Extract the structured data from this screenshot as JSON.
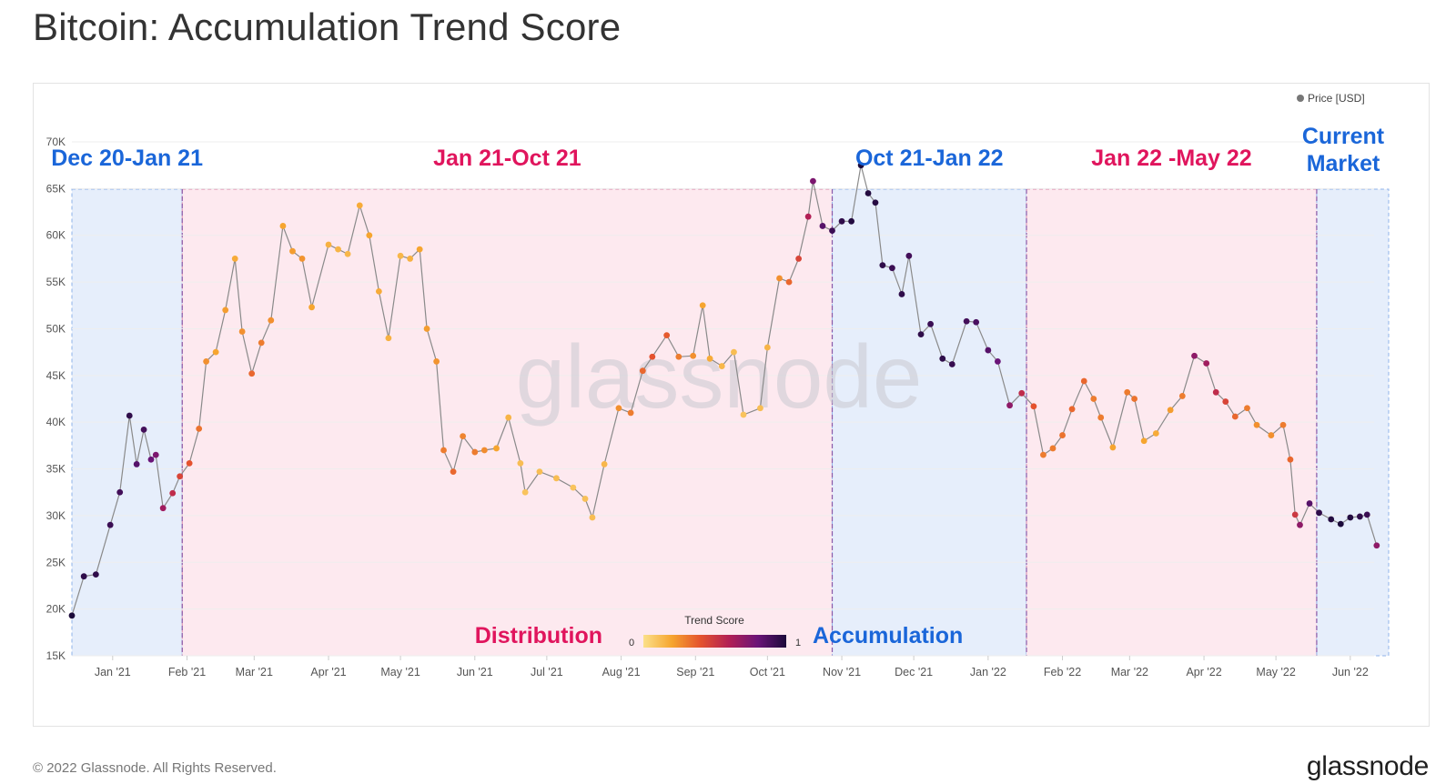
{
  "title": "Bitcoin: Accumulation Trend Score",
  "footer": "© 2022 Glassnode. All Rights Reserved.",
  "brand": "glassnode",
  "watermark": "glassnode",
  "colors": {
    "accumulation_band": "#e6eefb",
    "distribution_band": "#fde9ef",
    "accumulation_text": "#1a66d9",
    "distribution_text": "#e0155d",
    "price_line": "#8a8a8a",
    "grid": "#eeeeee",
    "score_gradient": [
      "#fbe08a",
      "#f6a52f",
      "#e4522e",
      "#b21f55",
      "#6a1478",
      "#1b0a3a"
    ]
  },
  "chart_data": {
    "type": "scatter",
    "title": "Bitcoin: Accumulation Trend Score",
    "legend": {
      "series_label": "Price [USD]",
      "placement": "top-right"
    },
    "color_scale": {
      "label": "Trend Score",
      "min_label": "0",
      "max_label": "1",
      "range": [
        0,
        1
      ]
    },
    "x_range": [
      "2020-12-15",
      "2022-06-17"
    ],
    "y_range": [
      15000,
      70000
    ],
    "y_ticks": [
      {
        "value": 15000,
        "label": "15K"
      },
      {
        "value": 20000,
        "label": "20K"
      },
      {
        "value": 25000,
        "label": "25K"
      },
      {
        "value": 30000,
        "label": "30K"
      },
      {
        "value": 35000,
        "label": "35K"
      },
      {
        "value": 40000,
        "label": "40K"
      },
      {
        "value": 45000,
        "label": "45K"
      },
      {
        "value": 50000,
        "label": "50K"
      },
      {
        "value": 55000,
        "label": "55K"
      },
      {
        "value": 60000,
        "label": "60K"
      },
      {
        "value": 65000,
        "label": "65K"
      },
      {
        "value": 70000,
        "label": "70K"
      }
    ],
    "x_ticks": [
      {
        "date": "2021-01-01",
        "label": "Jan '21"
      },
      {
        "date": "2021-02-01",
        "label": "Feb '21"
      },
      {
        "date": "2021-03-01",
        "label": "Mar '21"
      },
      {
        "date": "2021-04-01",
        "label": "Apr '21"
      },
      {
        "date": "2021-05-01",
        "label": "May '21"
      },
      {
        "date": "2021-06-01",
        "label": "Jun '21"
      },
      {
        "date": "2021-07-01",
        "label": "Jul '21"
      },
      {
        "date": "2021-08-01",
        "label": "Aug '21"
      },
      {
        "date": "2021-09-01",
        "label": "Sep '21"
      },
      {
        "date": "2021-10-01",
        "label": "Oct '21"
      },
      {
        "date": "2021-11-01",
        "label": "Nov '21"
      },
      {
        "date": "2021-12-01",
        "label": "Dec '21"
      },
      {
        "date": "2022-01-01",
        "label": "Jan '22"
      },
      {
        "date": "2022-02-01",
        "label": "Feb '22"
      },
      {
        "date": "2022-03-01",
        "label": "Mar '22"
      },
      {
        "date": "2022-04-01",
        "label": "Apr '22"
      },
      {
        "date": "2022-05-01",
        "label": "May '22"
      },
      {
        "date": "2022-06-01",
        "label": "Jun '22"
      }
    ],
    "regions": [
      {
        "label": "Dec 20-Jan 21",
        "kind": "accumulation",
        "start": "2020-12-15",
        "end": "2021-01-30"
      },
      {
        "label": "Jan 21-Oct 21",
        "kind": "distribution",
        "start": "2021-01-30",
        "end": "2021-10-28"
      },
      {
        "label": "Oct 21-Jan 22",
        "kind": "accumulation",
        "start": "2021-10-28",
        "end": "2022-01-17"
      },
      {
        "label": "Jan 22 -May 22",
        "kind": "distribution",
        "start": "2022-01-17",
        "end": "2022-05-18"
      },
      {
        "label": "Current Market",
        "kind": "accumulation",
        "start": "2022-05-18",
        "end": "2022-06-17"
      }
    ],
    "annotations": [
      {
        "text": "Distribution",
        "kind": "distribution"
      },
      {
        "text": "Accumulation",
        "kind": "accumulation"
      }
    ],
    "price_series": {
      "name": "Price [USD]",
      "points": [
        [
          "2020-12-15",
          19300,
          1.0
        ],
        [
          "2020-12-20",
          23500,
          0.95
        ],
        [
          "2020-12-25",
          23700,
          0.95
        ],
        [
          "2020-12-31",
          29000,
          0.92
        ],
        [
          "2021-01-04",
          32500,
          0.9
        ],
        [
          "2021-01-08",
          40700,
          0.95
        ],
        [
          "2021-01-11",
          35500,
          0.85
        ],
        [
          "2021-01-14",
          39200,
          0.9
        ],
        [
          "2021-01-17",
          36000,
          0.8
        ],
        [
          "2021-01-19",
          36500,
          0.75
        ],
        [
          "2021-01-22",
          30800,
          0.65
        ],
        [
          "2021-01-26",
          32400,
          0.55
        ],
        [
          "2021-01-29",
          34200,
          0.45
        ],
        [
          "2021-02-02",
          35600,
          0.4
        ],
        [
          "2021-02-06",
          39300,
          0.32
        ],
        [
          "2021-02-09",
          46500,
          0.25
        ],
        [
          "2021-02-13",
          47500,
          0.2
        ],
        [
          "2021-02-17",
          52000,
          0.22
        ],
        [
          "2021-02-21",
          57500,
          0.18
        ],
        [
          "2021-02-24",
          49700,
          0.25
        ],
        [
          "2021-02-28",
          45200,
          0.35
        ],
        [
          "2021-03-04",
          48500,
          0.3
        ],
        [
          "2021-03-08",
          50900,
          0.25
        ],
        [
          "2021-03-13",
          61000,
          0.2
        ],
        [
          "2021-03-17",
          58300,
          0.22
        ],
        [
          "2021-03-21",
          57500,
          0.24
        ],
        [
          "2021-03-25",
          52300,
          0.2
        ],
        [
          "2021-04-01",
          59000,
          0.16
        ],
        [
          "2021-04-05",
          58500,
          0.15
        ],
        [
          "2021-04-09",
          58000,
          0.14
        ],
        [
          "2021-04-14",
          63200,
          0.18
        ],
        [
          "2021-04-18",
          60000,
          0.2
        ],
        [
          "2021-04-22",
          54000,
          0.18
        ],
        [
          "2021-04-26",
          49000,
          0.16
        ],
        [
          "2021-05-01",
          57800,
          0.14
        ],
        [
          "2021-05-05",
          57500,
          0.16
        ],
        [
          "2021-05-09",
          58500,
          0.2
        ],
        [
          "2021-05-12",
          50000,
          0.22
        ],
        [
          "2021-05-16",
          46500,
          0.24
        ],
        [
          "2021-05-19",
          37000,
          0.3
        ],
        [
          "2021-05-23",
          34700,
          0.35
        ],
        [
          "2021-05-27",
          38500,
          0.28
        ],
        [
          "2021-06-01",
          36800,
          0.3
        ],
        [
          "2021-06-05",
          37000,
          0.26
        ],
        [
          "2021-06-10",
          37200,
          0.2
        ],
        [
          "2021-06-15",
          40500,
          0.15
        ],
        [
          "2021-06-20",
          35600,
          0.12
        ],
        [
          "2021-06-22",
          32500,
          0.1
        ],
        [
          "2021-06-28",
          34700,
          0.12
        ],
        [
          "2021-07-05",
          34000,
          0.12
        ],
        [
          "2021-07-12",
          33000,
          0.1
        ],
        [
          "2021-07-17",
          31800,
          0.11
        ],
        [
          "2021-07-20",
          29800,
          0.12
        ],
        [
          "2021-07-25",
          35500,
          0.14
        ],
        [
          "2021-07-31",
          41500,
          0.25
        ],
        [
          "2021-08-05",
          41000,
          0.3
        ],
        [
          "2021-08-10",
          45500,
          0.35
        ],
        [
          "2021-08-14",
          47000,
          0.4
        ],
        [
          "2021-08-20",
          49300,
          0.38
        ],
        [
          "2021-08-25",
          47000,
          0.3
        ],
        [
          "2021-08-31",
          47100,
          0.25
        ],
        [
          "2021-09-04",
          52500,
          0.2
        ],
        [
          "2021-09-07",
          46800,
          0.18
        ],
        [
          "2021-09-12",
          46000,
          0.14
        ],
        [
          "2021-09-17",
          47500,
          0.12
        ],
        [
          "2021-09-21",
          40800,
          0.1
        ],
        [
          "2021-09-28",
          41500,
          0.12
        ],
        [
          "2021-10-01",
          48000,
          0.15
        ],
        [
          "2021-10-06",
          55400,
          0.25
        ],
        [
          "2021-10-10",
          55000,
          0.35
        ],
        [
          "2021-10-14",
          57500,
          0.45
        ],
        [
          "2021-10-18",
          62000,
          0.6
        ],
        [
          "2021-10-20",
          65800,
          0.75
        ],
        [
          "2021-10-24",
          61000,
          0.85
        ],
        [
          "2021-10-28",
          60500,
          0.92
        ],
        [
          "2021-11-01",
          61500,
          0.95
        ],
        [
          "2021-11-05",
          61500,
          0.98
        ],
        [
          "2021-11-09",
          67500,
          1.0
        ],
        [
          "2021-11-12",
          64500,
          0.98
        ],
        [
          "2021-11-15",
          63500,
          0.97
        ],
        [
          "2021-11-18",
          56800,
          0.95
        ],
        [
          "2021-11-22",
          56500,
          0.92
        ],
        [
          "2021-11-26",
          53700,
          0.95
        ],
        [
          "2021-11-29",
          57800,
          0.9
        ],
        [
          "2021-12-04",
          49400,
          0.95
        ],
        [
          "2021-12-08",
          50500,
          0.92
        ],
        [
          "2021-12-13",
          46800,
          0.95
        ],
        [
          "2021-12-17",
          46200,
          0.93
        ],
        [
          "2021-12-23",
          50800,
          0.9
        ],
        [
          "2021-12-27",
          50700,
          0.88
        ],
        [
          "2022-01-01",
          47700,
          0.85
        ],
        [
          "2022-01-05",
          46500,
          0.8
        ],
        [
          "2022-01-10",
          41800,
          0.7
        ],
        [
          "2022-01-15",
          43100,
          0.55
        ],
        [
          "2022-01-20",
          41700,
          0.4
        ],
        [
          "2022-01-24",
          36500,
          0.3
        ],
        [
          "2022-01-28",
          37200,
          0.3
        ],
        [
          "2022-02-01",
          38600,
          0.32
        ],
        [
          "2022-02-05",
          41400,
          0.35
        ],
        [
          "2022-02-10",
          44400,
          0.35
        ],
        [
          "2022-02-14",
          42500,
          0.3
        ],
        [
          "2022-02-17",
          40500,
          0.3
        ],
        [
          "2022-02-22",
          37300,
          0.2
        ],
        [
          "2022-02-28",
          43200,
          0.3
        ],
        [
          "2022-03-03",
          42500,
          0.32
        ],
        [
          "2022-03-07",
          38000,
          0.2
        ],
        [
          "2022-03-12",
          38800,
          0.18
        ],
        [
          "2022-03-18",
          41300,
          0.22
        ],
        [
          "2022-03-23",
          42800,
          0.3
        ],
        [
          "2022-03-28",
          47100,
          0.7
        ],
        [
          "2022-04-02",
          46300,
          0.65
        ],
        [
          "2022-04-06",
          43200,
          0.55
        ],
        [
          "2022-04-10",
          42200,
          0.45
        ],
        [
          "2022-04-14",
          40600,
          0.35
        ],
        [
          "2022-04-19",
          41500,
          0.3
        ],
        [
          "2022-04-23",
          39700,
          0.25
        ],
        [
          "2022-04-29",
          38600,
          0.25
        ],
        [
          "2022-05-04",
          39700,
          0.3
        ],
        [
          "2022-05-07",
          36000,
          0.35
        ],
        [
          "2022-05-09",
          30100,
          0.5
        ],
        [
          "2022-05-11",
          29000,
          0.7
        ],
        [
          "2022-05-15",
          31300,
          0.85
        ],
        [
          "2022-05-19",
          30300,
          0.95
        ],
        [
          "2022-05-24",
          29600,
          0.98
        ],
        [
          "2022-05-28",
          29100,
          1.0
        ],
        [
          "2022-06-01",
          29800,
          0.98
        ],
        [
          "2022-06-05",
          29900,
          0.95
        ],
        [
          "2022-06-08",
          30100,
          0.92
        ],
        [
          "2022-06-12",
          26800,
          0.7
        ]
      ]
    }
  }
}
